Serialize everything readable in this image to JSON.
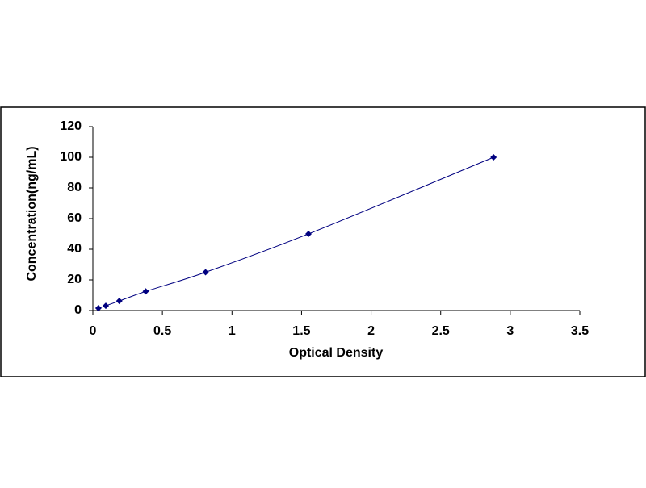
{
  "chart_data": {
    "type": "line",
    "x_label": "Optical Density",
    "y_label": "Concentration(ng/mL)",
    "series": [
      {
        "color": "#000080",
        "x": [
          0.04,
          0.093,
          0.19,
          0.38,
          0.81,
          1.55,
          2.88
        ],
        "values": [
          1.56,
          3.12,
          6.25,
          12.5,
          25,
          50,
          100
        ]
      }
    ],
    "xlim": [
      0,
      3.5
    ],
    "xticks": [
      0,
      0.5,
      1,
      1.5,
      2,
      2.5,
      3,
      3.5
    ],
    "ylim": [
      0,
      120
    ],
    "yticks": [
      0,
      20,
      40,
      60,
      80,
      100,
      120
    ],
    "smooth": true,
    "marker": "diamond",
    "grid": false
  }
}
